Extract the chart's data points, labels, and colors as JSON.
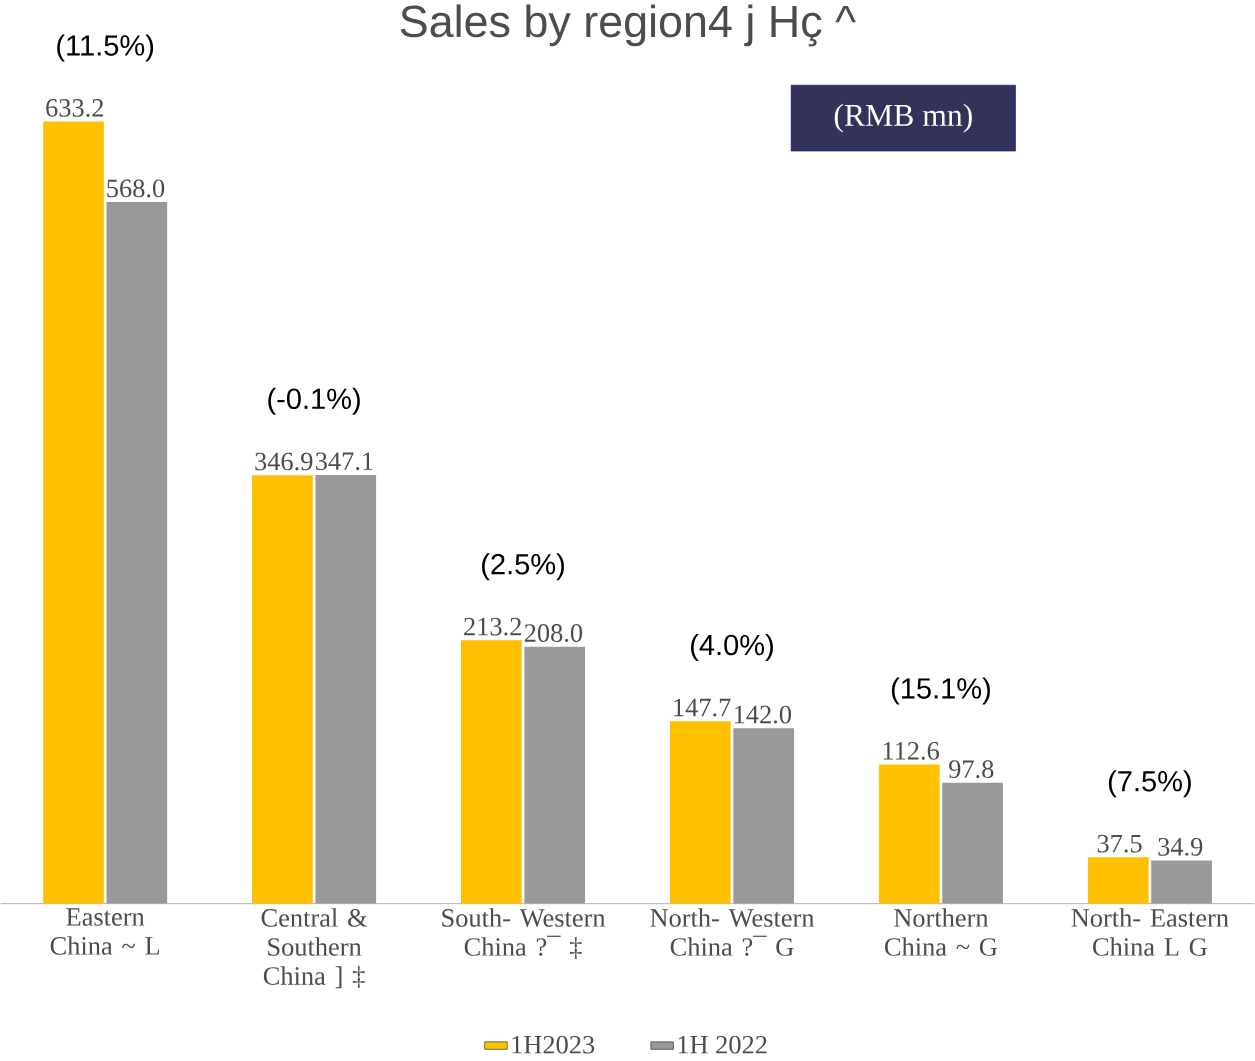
{
  "chart_data": {
    "type": "bar",
    "title": "Sales by region4 j  Hç ^",
    "categories": [
      "Eastern China ~ L",
      "Central & Southern China ] ‡",
      "South- Western China ?¯ ‡",
      "North- Western China ?¯ G",
      "Northern China ~ G",
      "North- Eastern China L G"
    ],
    "series": [
      {
        "name": "1H2023",
        "color": "#ffc000",
        "values": [
          633.2,
          346.9,
          213.2,
          147.7,
          112.6,
          37.5
        ],
        "value_labels": [
          "633.2",
          "346.9",
          "213.2",
          "147.7",
          "112.6",
          "37.5"
        ]
      },
      {
        "name": "1H 2022",
        "color": "#999999",
        "values": [
          568.0,
          347.1,
          208.0,
          142.0,
          97.8,
          34.9
        ],
        "value_labels": [
          "568.0",
          "347.1",
          "208.0",
          "142.0",
          "97.8",
          "34.9"
        ]
      }
    ],
    "annotations": [
      "(11.5%)",
      "(-0.1%)",
      "(2.5%)",
      "(4.0%)",
      "(15.1%)",
      "(7.5%)",
      "(RMB mn)"
    ],
    "legend": "bottom"
  }
}
